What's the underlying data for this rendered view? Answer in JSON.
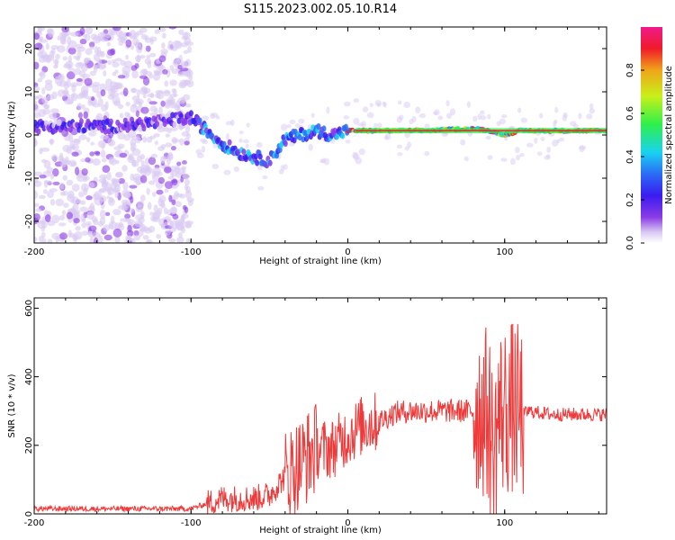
{
  "title": "S115.2023.002.05.10.R14",
  "colors": {
    "line": "#ee3a3a",
    "background": "#ffffff",
    "axis": "#000000",
    "colormap": [
      "#ffffff",
      "#d9c9f2",
      "#8a3be6",
      "#3a1cf0",
      "#2a6cf5",
      "#19d2f0",
      "#2ef04a",
      "#c9f01a",
      "#f0a51a",
      "#f01a2a",
      "#f01a8a"
    ]
  },
  "chart_data": [
    {
      "type": "heatmap",
      "title": "",
      "xlabel": "Height of straight line (km)",
      "ylabel": "Frequency (Hz)",
      "xlim": [
        -200,
        165
      ],
      "ylim": [
        -25,
        25
      ],
      "xticks": [
        -200,
        -100,
        0,
        100
      ],
      "xtick_labels": [
        "-200",
        "-100",
        "0",
        "100"
      ],
      "yticks": [
        -20,
        -10,
        0,
        10,
        20
      ],
      "ytick_labels": [
        "-20",
        "-10",
        "0",
        "10",
        "20"
      ],
      "colorbar": {
        "label": "Normalized spectral amplitude",
        "range": [
          0,
          1
        ],
        "ticks": [
          0.0,
          0.2,
          0.4,
          0.6,
          0.8
        ],
        "tick_labels": [
          "0.0",
          "0.2",
          "0.4",
          "0.6",
          "0.8"
        ]
      },
      "ridge": [
        {
          "x": -200,
          "y": 2
        },
        {
          "x": -150,
          "y": 2
        },
        {
          "x": -120,
          "y": 3
        },
        {
          "x": -100,
          "y": 4
        },
        {
          "x": -90,
          "y": 1
        },
        {
          "x": -80,
          "y": -2
        },
        {
          "x": -70,
          "y": -4
        },
        {
          "x": -60,
          "y": -5
        },
        {
          "x": -50,
          "y": -6
        },
        {
          "x": -40,
          "y": -1
        },
        {
          "x": -30,
          "y": 0
        },
        {
          "x": -20,
          "y": 1
        },
        {
          "x": -10,
          "y": 0
        },
        {
          "x": 0,
          "y": 1
        },
        {
          "x": 50,
          "y": 1
        },
        {
          "x": 80,
          "y": 1.5
        },
        {
          "x": 90,
          "y": 1
        },
        {
          "x": 100,
          "y": 0
        },
        {
          "x": 110,
          "y": 1
        },
        {
          "x": 165,
          "y": 1
        }
      ]
    },
    {
      "type": "line",
      "title": "",
      "xlabel": "Height of straight line (km)",
      "ylabel": "SNR (10 * v/v)",
      "xlim": [
        -200,
        165
      ],
      "ylim": [
        0,
        630
      ],
      "xticks": [
        -200,
        -100,
        0,
        100
      ],
      "xtick_labels": [
        "-200",
        "-100",
        "0",
        "100"
      ],
      "yticks": [
        0,
        200,
        400,
        600
      ],
      "ytick_labels": [
        "0",
        "200",
        "400",
        "600"
      ],
      "series": [
        {
          "x": [
            -200,
            -150,
            -100,
            -90,
            -80,
            -70,
            -60,
            -50,
            -40,
            -30,
            -20,
            -10,
            0,
            10,
            20,
            30,
            40,
            60,
            80,
            85,
            90,
            93,
            96,
            100,
            105,
            108,
            110,
            112,
            115,
            130,
            150,
            165
          ],
          "y": [
            15,
            15,
            15,
            30,
            45,
            45,
            45,
            55,
            110,
            150,
            190,
            190,
            230,
            260,
            270,
            295,
            300,
            300,
            300,
            310,
            280,
            160,
            290,
            300,
            310,
            300,
            290,
            290,
            300,
            290,
            290,
            290
          ]
        }
      ]
    }
  ]
}
